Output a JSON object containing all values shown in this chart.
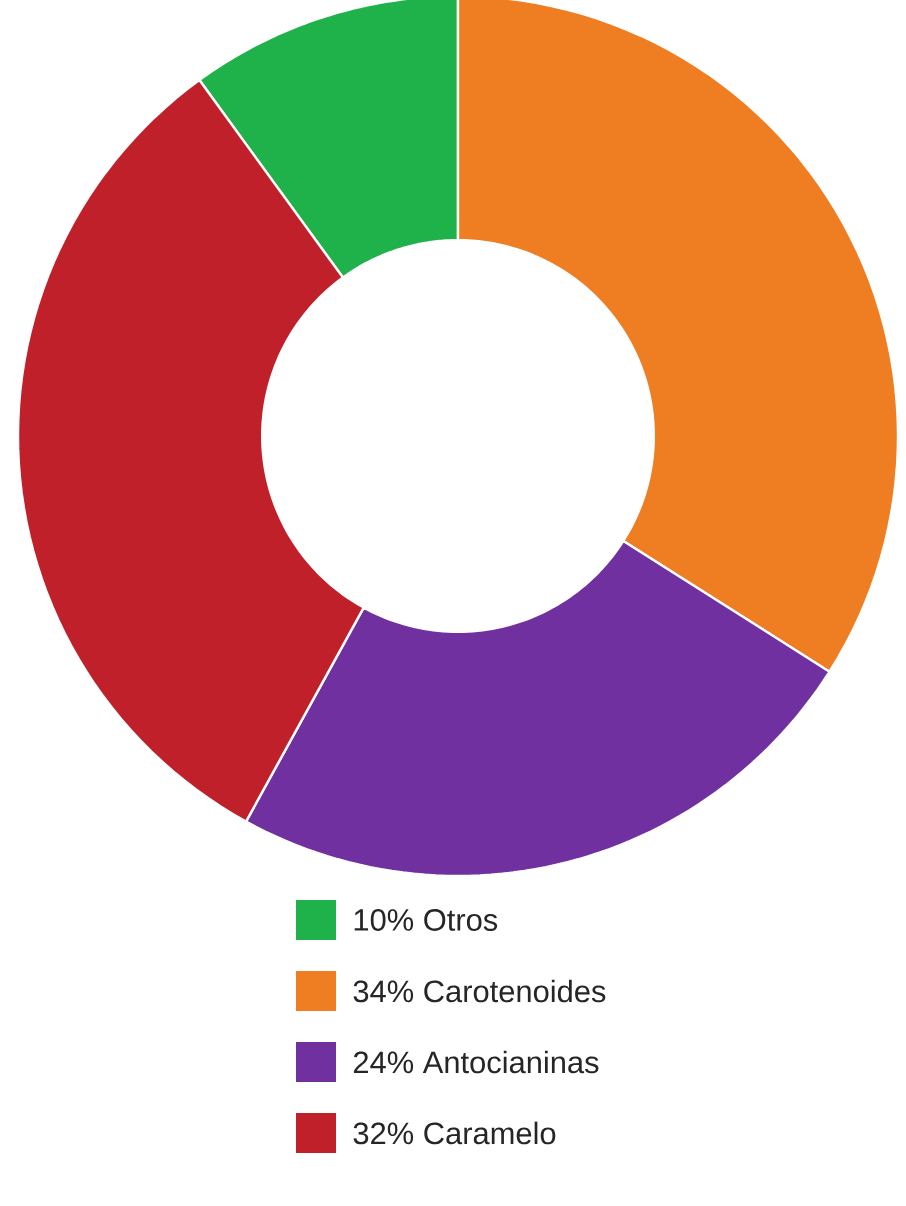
{
  "chart_data": {
    "type": "donut",
    "categories": [
      "10% Otros",
      "34% Carotenoides",
      "24% Antocianinas",
      "32% Caramelo"
    ],
    "values": [
      10,
      34,
      24,
      32
    ],
    "colors": [
      "#1fb24a",
      "#ef7d22",
      "#7030a0",
      "#c0202a"
    ],
    "legend": "bottom"
  }
}
